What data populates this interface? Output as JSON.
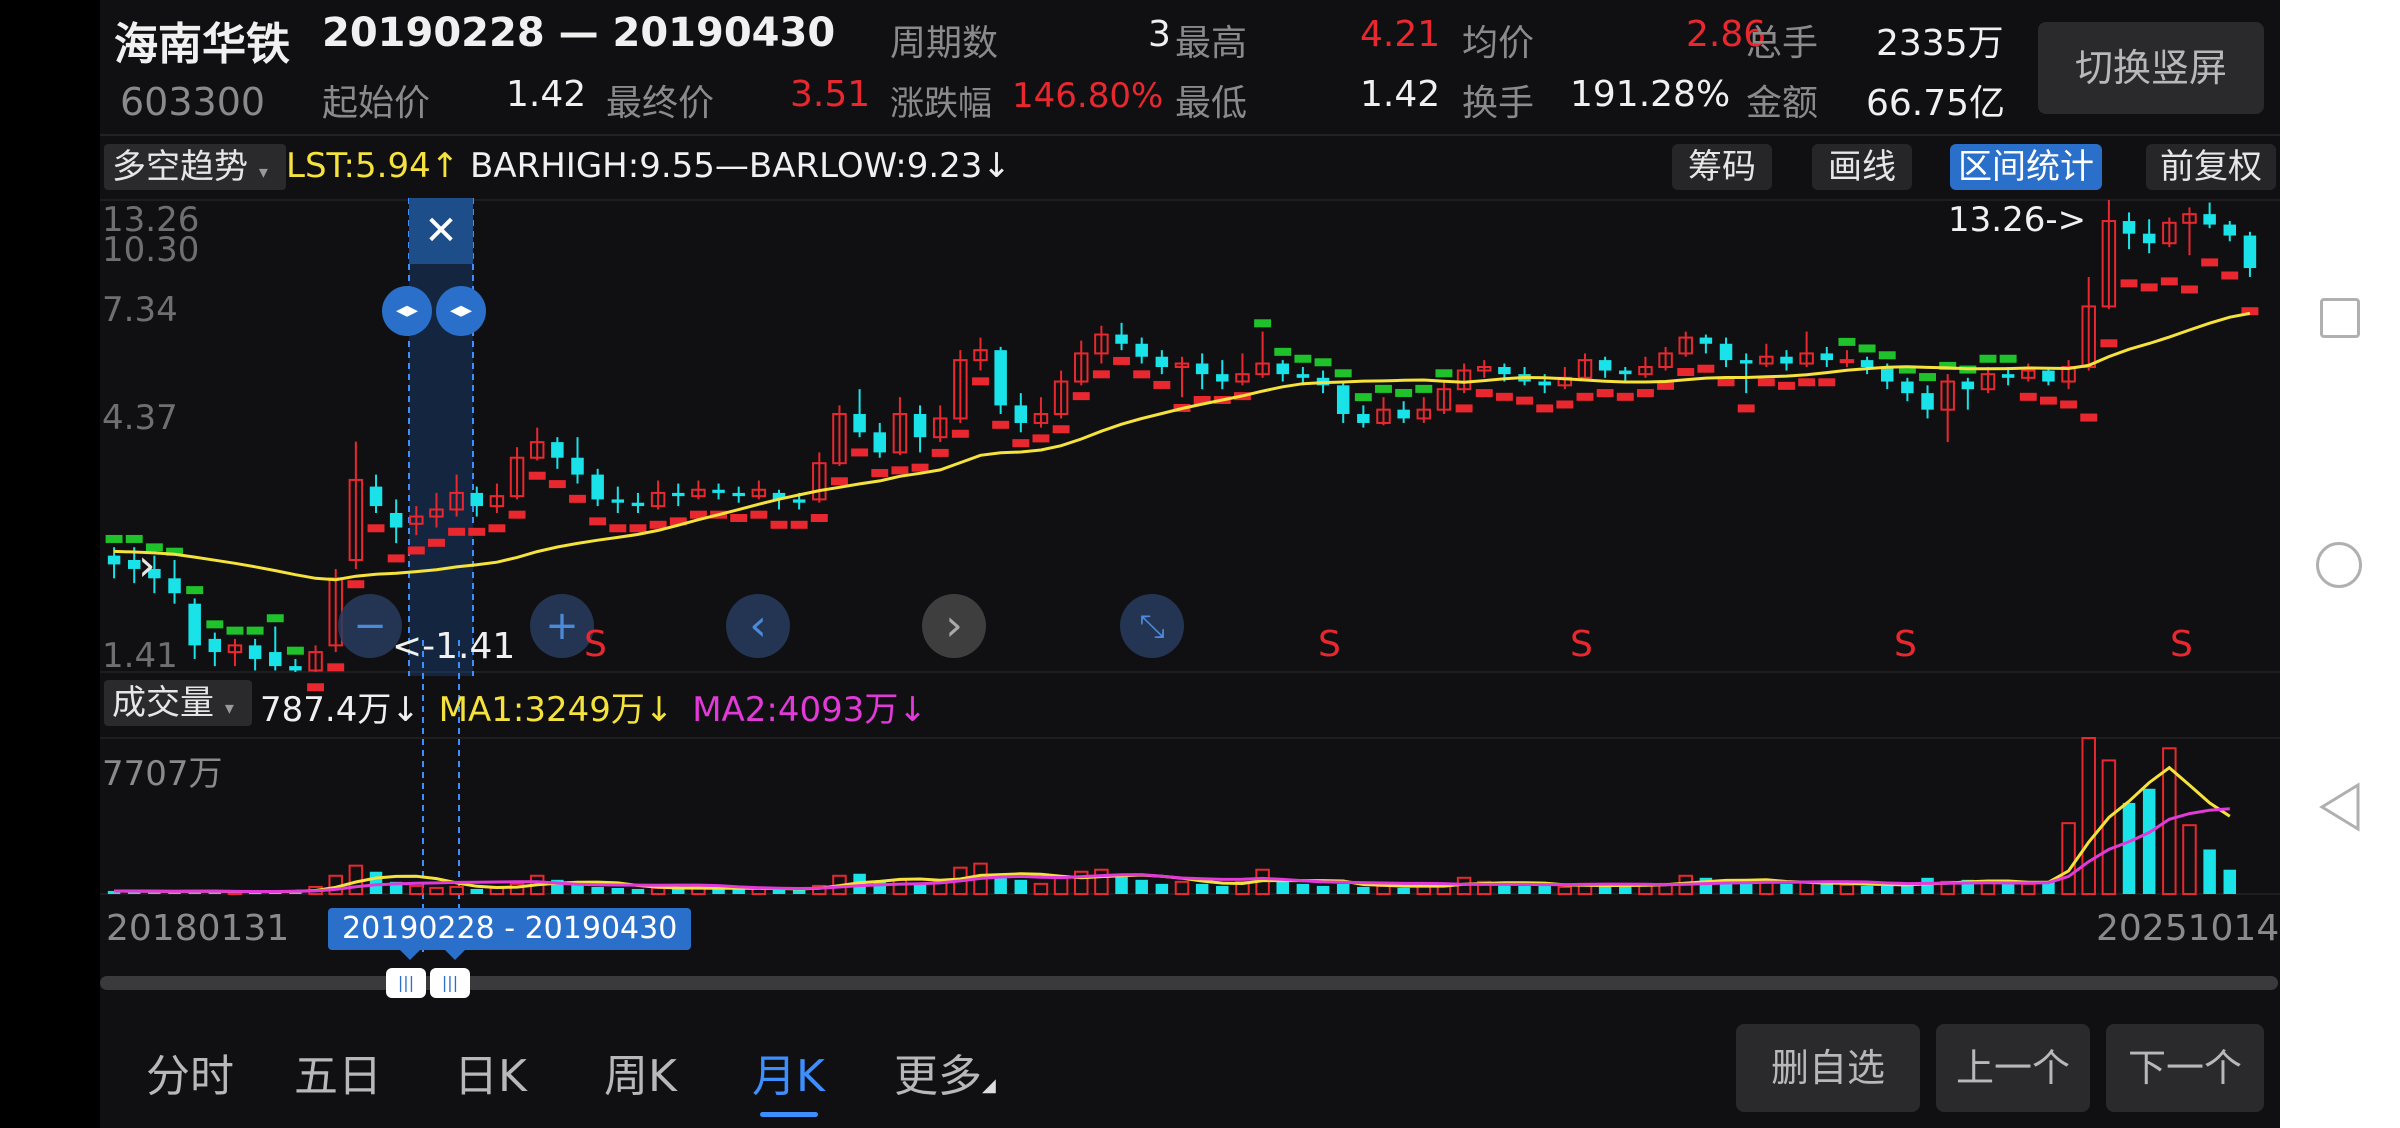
{
  "stock": {
    "name": "海南华铁",
    "code": "603300",
    "range": "20190228 — 20190430",
    "stats": [
      {
        "label": "周期数",
        "value": "3",
        "color": "white"
      },
      {
        "label": "最高",
        "value": "4.21",
        "color": "red"
      },
      {
        "label": "均价",
        "value": "2.86",
        "color": "red"
      },
      {
        "label": "总手",
        "value": "2335万",
        "color": "white"
      },
      {
        "label": "起始价",
        "value": "1.42",
        "color": "white"
      },
      {
        "label": "最终价",
        "value": "3.51",
        "color": "red"
      },
      {
        "label": "涨跌幅",
        "value": "146.80%",
        "color": "red"
      },
      {
        "label": "最低",
        "value": "1.42",
        "color": "white"
      },
      {
        "label": "换手",
        "value": "191.28%",
        "color": "white"
      },
      {
        "label": "金额",
        "value": "66.75亿",
        "color": "white"
      }
    ],
    "switch_button": "切换竖屏"
  },
  "indicator": {
    "selector": "多空趋势",
    "lst": "LST:5.94",
    "lst_arrow": "↑",
    "barhigh": "BARHIGH:9.55",
    "dash": "—",
    "barlow": "BARLOW:9.23",
    "barlow_arrow": "↓",
    "buttons": [
      "筹码",
      "画线",
      "区间统计",
      "前复权"
    ],
    "active_button": "区间统计"
  },
  "price_axis": [
    "13.26",
    "10.30",
    "7.34",
    "4.37",
    "1.41"
  ],
  "annotations": {
    "high": "13.26->",
    "low": "<-1.41",
    "close_x": "✕",
    "s_marker": "S"
  },
  "volume": {
    "selector": "成交量",
    "value": "787.4万",
    "value_arrow": "↓",
    "ma1": "MA1:3249万",
    "ma1_arrow": "↓",
    "ma2": "MA2:4093万",
    "ma2_arrow": "↓",
    "axis_max": "7707万"
  },
  "date_axis": {
    "start": "20180131",
    "end": "20251014",
    "selection": "20190228 - 20190430"
  },
  "tabs": [
    "分时",
    "五日",
    "日K",
    "周K",
    "月K",
    "更多"
  ],
  "active_tab": "月K",
  "bottom_buttons": [
    "删自选",
    "上一个",
    "下一个"
  ],
  "colors": {
    "up": "#e8282e",
    "down": "#19e3e8",
    "ma": "#f5e23c",
    "ma2": "#e13ad8",
    "accent": "#3d8eff",
    "trend_down": "#1fc22a"
  },
  "chart_data": {
    "type": "candlestick",
    "period": "monthly",
    "price_range": [
      1.41,
      13.26
    ],
    "volume_max_wan": 7707,
    "highlight_range": [
      "20190228",
      "20190430"
    ],
    "candles": [
      {
        "o": 2.45,
        "c": 2.35,
        "h": 2.55,
        "l": 2.2
      },
      {
        "o": 2.4,
        "c": 2.3,
        "h": 2.55,
        "l": 2.15
      },
      {
        "o": 2.3,
        "c": 2.2,
        "h": 2.45,
        "l": 2.05
      },
      {
        "o": 2.2,
        "c": 2.05,
        "h": 2.4,
        "l": 1.95
      },
      {
        "o": 1.95,
        "c": 1.6,
        "h": 2.0,
        "l": 1.5
      },
      {
        "o": 1.65,
        "c": 1.55,
        "h": 1.7,
        "l": 1.45
      },
      {
        "o": 1.55,
        "c": 1.6,
        "h": 1.65,
        "l": 1.45
      },
      {
        "o": 1.6,
        "c": 1.5,
        "h": 1.65,
        "l": 1.42
      },
      {
        "o": 1.55,
        "c": 1.45,
        "h": 1.75,
        "l": 1.42
      },
      {
        "o": 1.45,
        "c": 1.42,
        "h": 1.5,
        "l": 1.41
      },
      {
        "o": 1.42,
        "c": 1.55,
        "h": 1.6,
        "l": 1.41
      },
      {
        "o": 1.6,
        "c": 2.2,
        "h": 2.3,
        "l": 1.55
      },
      {
        "o": 2.4,
        "c": 3.51,
        "h": 4.21,
        "l": 2.3
      },
      {
        "o": 3.4,
        "c": 3.1,
        "h": 3.6,
        "l": 3.0
      },
      {
        "o": 3.0,
        "c": 2.8,
        "h": 3.2,
        "l": 2.6
      },
      {
        "o": 2.85,
        "c": 2.95,
        "h": 3.1,
        "l": 2.7
      },
      {
        "o": 2.95,
        "c": 3.05,
        "h": 3.3,
        "l": 2.8
      },
      {
        "o": 3.05,
        "c": 3.3,
        "h": 3.6,
        "l": 2.95
      },
      {
        "o": 3.3,
        "c": 3.1,
        "h": 3.4,
        "l": 2.95
      },
      {
        "o": 3.1,
        "c": 3.25,
        "h": 3.45,
        "l": 3.0
      },
      {
        "o": 3.25,
        "c": 3.9,
        "h": 4.1,
        "l": 3.2
      },
      {
        "o": 3.9,
        "c": 4.2,
        "h": 4.5,
        "l": 3.85
      },
      {
        "o": 4.2,
        "c": 3.9,
        "h": 4.3,
        "l": 3.7
      },
      {
        "o": 3.9,
        "c": 3.6,
        "h": 4.3,
        "l": 3.45
      },
      {
        "o": 3.6,
        "c": 3.2,
        "h": 3.7,
        "l": 3.1
      },
      {
        "o": 3.2,
        "c": 3.15,
        "h": 3.4,
        "l": 3.0
      },
      {
        "o": 3.15,
        "c": 3.1,
        "h": 3.3,
        "l": 3.0
      },
      {
        "o": 3.1,
        "c": 3.3,
        "h": 3.5,
        "l": 3.05
      },
      {
        "o": 3.3,
        "c": 3.25,
        "h": 3.45,
        "l": 3.1
      },
      {
        "o": 3.25,
        "c": 3.35,
        "h": 3.5,
        "l": 3.2
      },
      {
        "o": 3.35,
        "c": 3.3,
        "h": 3.45,
        "l": 3.2
      },
      {
        "o": 3.3,
        "c": 3.25,
        "h": 3.4,
        "l": 3.15
      },
      {
        "o": 3.25,
        "c": 3.35,
        "h": 3.5,
        "l": 3.2
      },
      {
        "o": 3.3,
        "c": 3.2,
        "h": 3.35,
        "l": 3.05
      },
      {
        "o": 3.2,
        "c": 3.15,
        "h": 3.3,
        "l": 3.05
      },
      {
        "o": 3.2,
        "c": 3.8,
        "h": 4.0,
        "l": 3.15
      },
      {
        "o": 3.8,
        "c": 4.8,
        "h": 5.0,
        "l": 3.75
      },
      {
        "o": 4.8,
        "c": 4.4,
        "h": 5.4,
        "l": 4.3
      },
      {
        "o": 4.4,
        "c": 4.0,
        "h": 4.6,
        "l": 3.9
      },
      {
        "o": 4.0,
        "c": 4.8,
        "h": 5.2,
        "l": 3.95
      },
      {
        "o": 4.8,
        "c": 4.3,
        "h": 5.0,
        "l": 4.0
      },
      {
        "o": 4.3,
        "c": 4.7,
        "h": 5.0,
        "l": 4.2
      },
      {
        "o": 4.7,
        "c": 6.2,
        "h": 6.5,
        "l": 4.6
      },
      {
        "o": 6.2,
        "c": 6.5,
        "h": 6.9,
        "l": 5.9
      },
      {
        "o": 6.5,
        "c": 5.0,
        "h": 6.6,
        "l": 4.8
      },
      {
        "o": 5.0,
        "c": 4.6,
        "h": 5.3,
        "l": 4.4
      },
      {
        "o": 4.6,
        "c": 4.8,
        "h": 5.2,
        "l": 4.5
      },
      {
        "o": 4.8,
        "c": 5.6,
        "h": 5.9,
        "l": 4.7
      },
      {
        "o": 5.6,
        "c": 6.4,
        "h": 6.8,
        "l": 5.5
      },
      {
        "o": 6.4,
        "c": 7.0,
        "h": 7.3,
        "l": 6.1
      },
      {
        "o": 7.0,
        "c": 6.7,
        "h": 7.4,
        "l": 6.5
      },
      {
        "o": 6.7,
        "c": 6.3,
        "h": 6.9,
        "l": 6.1
      },
      {
        "o": 6.3,
        "c": 6.0,
        "h": 6.5,
        "l": 5.8
      },
      {
        "o": 6.0,
        "c": 6.1,
        "h": 6.3,
        "l": 5.2
      },
      {
        "o": 6.1,
        "c": 5.8,
        "h": 6.4,
        "l": 5.4
      },
      {
        "o": 5.8,
        "c": 5.6,
        "h": 6.2,
        "l": 5.4
      },
      {
        "o": 5.6,
        "c": 5.8,
        "h": 6.4,
        "l": 5.5
      },
      {
        "o": 5.8,
        "c": 6.1,
        "h": 7.1,
        "l": 5.7
      },
      {
        "o": 6.1,
        "c": 5.8,
        "h": 6.2,
        "l": 5.6
      },
      {
        "o": 5.8,
        "c": 5.7,
        "h": 6.0,
        "l": 5.5
      },
      {
        "o": 5.7,
        "c": 5.5,
        "h": 5.9,
        "l": 5.3
      },
      {
        "o": 5.5,
        "c": 4.8,
        "h": 5.6,
        "l": 4.6
      },
      {
        "o": 4.8,
        "c": 4.6,
        "h": 5.0,
        "l": 4.5
      },
      {
        "o": 4.6,
        "c": 4.9,
        "h": 5.2,
        "l": 4.55
      },
      {
        "o": 4.9,
        "c": 4.7,
        "h": 5.1,
        "l": 4.6
      },
      {
        "o": 4.7,
        "c": 4.9,
        "h": 5.2,
        "l": 4.6
      },
      {
        "o": 4.9,
        "c": 5.4,
        "h": 5.6,
        "l": 4.8
      },
      {
        "o": 5.4,
        "c": 5.9,
        "h": 6.1,
        "l": 5.3
      },
      {
        "o": 5.9,
        "c": 6.0,
        "h": 6.2,
        "l": 5.7
      },
      {
        "o": 6.0,
        "c": 5.8,
        "h": 6.1,
        "l": 5.6
      },
      {
        "o": 5.8,
        "c": 5.6,
        "h": 6.0,
        "l": 5.5
      },
      {
        "o": 5.6,
        "c": 5.5,
        "h": 5.8,
        "l": 5.3
      },
      {
        "o": 5.5,
        "c": 5.7,
        "h": 6.0,
        "l": 5.4
      },
      {
        "o": 5.7,
        "c": 6.2,
        "h": 6.4,
        "l": 5.6
      },
      {
        "o": 6.2,
        "c": 5.9,
        "h": 6.3,
        "l": 5.7
      },
      {
        "o": 5.9,
        "c": 5.8,
        "h": 6.0,
        "l": 5.6
      },
      {
        "o": 5.8,
        "c": 6.0,
        "h": 6.3,
        "l": 5.7
      },
      {
        "o": 6.0,
        "c": 6.4,
        "h": 6.6,
        "l": 5.9
      },
      {
        "o": 6.4,
        "c": 6.9,
        "h": 7.1,
        "l": 6.3
      },
      {
        "o": 6.9,
        "c": 6.7,
        "h": 7.0,
        "l": 6.4
      },
      {
        "o": 6.7,
        "c": 6.2,
        "h": 6.9,
        "l": 6.0
      },
      {
        "o": 6.2,
        "c": 6.1,
        "h": 6.4,
        "l": 5.3
      },
      {
        "o": 6.1,
        "c": 6.3,
        "h": 6.7,
        "l": 6.0
      },
      {
        "o": 6.3,
        "c": 6.1,
        "h": 6.5,
        "l": 5.9
      },
      {
        "o": 6.1,
        "c": 6.4,
        "h": 7.1,
        "l": 6.0
      },
      {
        "o": 6.4,
        "c": 6.2,
        "h": 6.6,
        "l": 6.0
      },
      {
        "o": 6.2,
        "c": 6.2,
        "h": 6.5,
        "l": 6.0
      },
      {
        "o": 6.2,
        "c": 6.0,
        "h": 6.3,
        "l": 5.8
      },
      {
        "o": 6.0,
        "c": 5.6,
        "h": 6.1,
        "l": 5.4
      },
      {
        "o": 5.6,
        "c": 5.3,
        "h": 5.7,
        "l": 5.1
      },
      {
        "o": 5.3,
        "c": 4.9,
        "h": 5.5,
        "l": 4.7
      },
      {
        "o": 4.9,
        "c": 5.6,
        "h": 5.8,
        "l": 4.2
      },
      {
        "o": 5.6,
        "c": 5.4,
        "h": 5.7,
        "l": 4.9
      },
      {
        "o": 5.4,
        "c": 5.8,
        "h": 6.0,
        "l": 5.3
      },
      {
        "o": 5.8,
        "c": 5.7,
        "h": 6.0,
        "l": 5.5
      },
      {
        "o": 5.7,
        "c": 5.9,
        "h": 6.1,
        "l": 5.6
      },
      {
        "o": 5.9,
        "c": 5.6,
        "h": 6.0,
        "l": 5.5
      },
      {
        "o": 5.6,
        "c": 6.0,
        "h": 6.2,
        "l": 5.4
      },
      {
        "o": 6.0,
        "c": 8.0,
        "h": 9.2,
        "l": 5.9
      },
      {
        "o": 8.0,
        "c": 12.0,
        "h": 13.26,
        "l": 7.9
      },
      {
        "o": 12.0,
        "c": 11.3,
        "h": 12.5,
        "l": 10.5
      },
      {
        "o": 11.3,
        "c": 10.8,
        "h": 12.1,
        "l": 10.3
      },
      {
        "o": 10.8,
        "c": 11.9,
        "h": 12.2,
        "l": 10.6
      },
      {
        "o": 11.9,
        "c": 12.4,
        "h": 12.8,
        "l": 10.2
      },
      {
        "o": 12.4,
        "c": 11.8,
        "h": 13.1,
        "l": 11.6
      },
      {
        "o": 11.8,
        "c": 11.2,
        "h": 12.0,
        "l": 10.9
      },
      {
        "o": 11.2,
        "c": 9.6,
        "h": 11.4,
        "l": 9.2
      }
    ],
    "volumes_wan": [
      150,
      140,
      120,
      110,
      160,
      130,
      100,
      95,
      120,
      200,
      350,
      900,
      1400,
      1100,
      600,
      400,
      300,
      350,
      250,
      300,
      500,
      900,
      700,
      500,
      350,
      300,
      250,
      300,
      280,
      320,
      260,
      240,
      300,
      250,
      220,
      400,
      900,
      1000,
      600,
      700,
      500,
      600,
      1300,
      1500,
      900,
      700,
      500,
      800,
      1100,
      1200,
      900,
      700,
      500,
      600,
      500,
      400,
      600,
      1200,
      600,
      500,
      400,
      500,
      350,
      400,
      300,
      400,
      500,
      800,
      600,
      500,
      400,
      400,
      350,
      500,
      450,
      400,
      450,
      500,
      900,
      800,
      700,
      500,
      600,
      500,
      600,
      500,
      450,
      400,
      400,
      500,
      800,
      600,
      700,
      600,
      500,
      500,
      600,
      3500,
      7707,
      6600,
      4500,
      5200,
      7200,
      3400,
      2200,
      1200
    ]
  }
}
